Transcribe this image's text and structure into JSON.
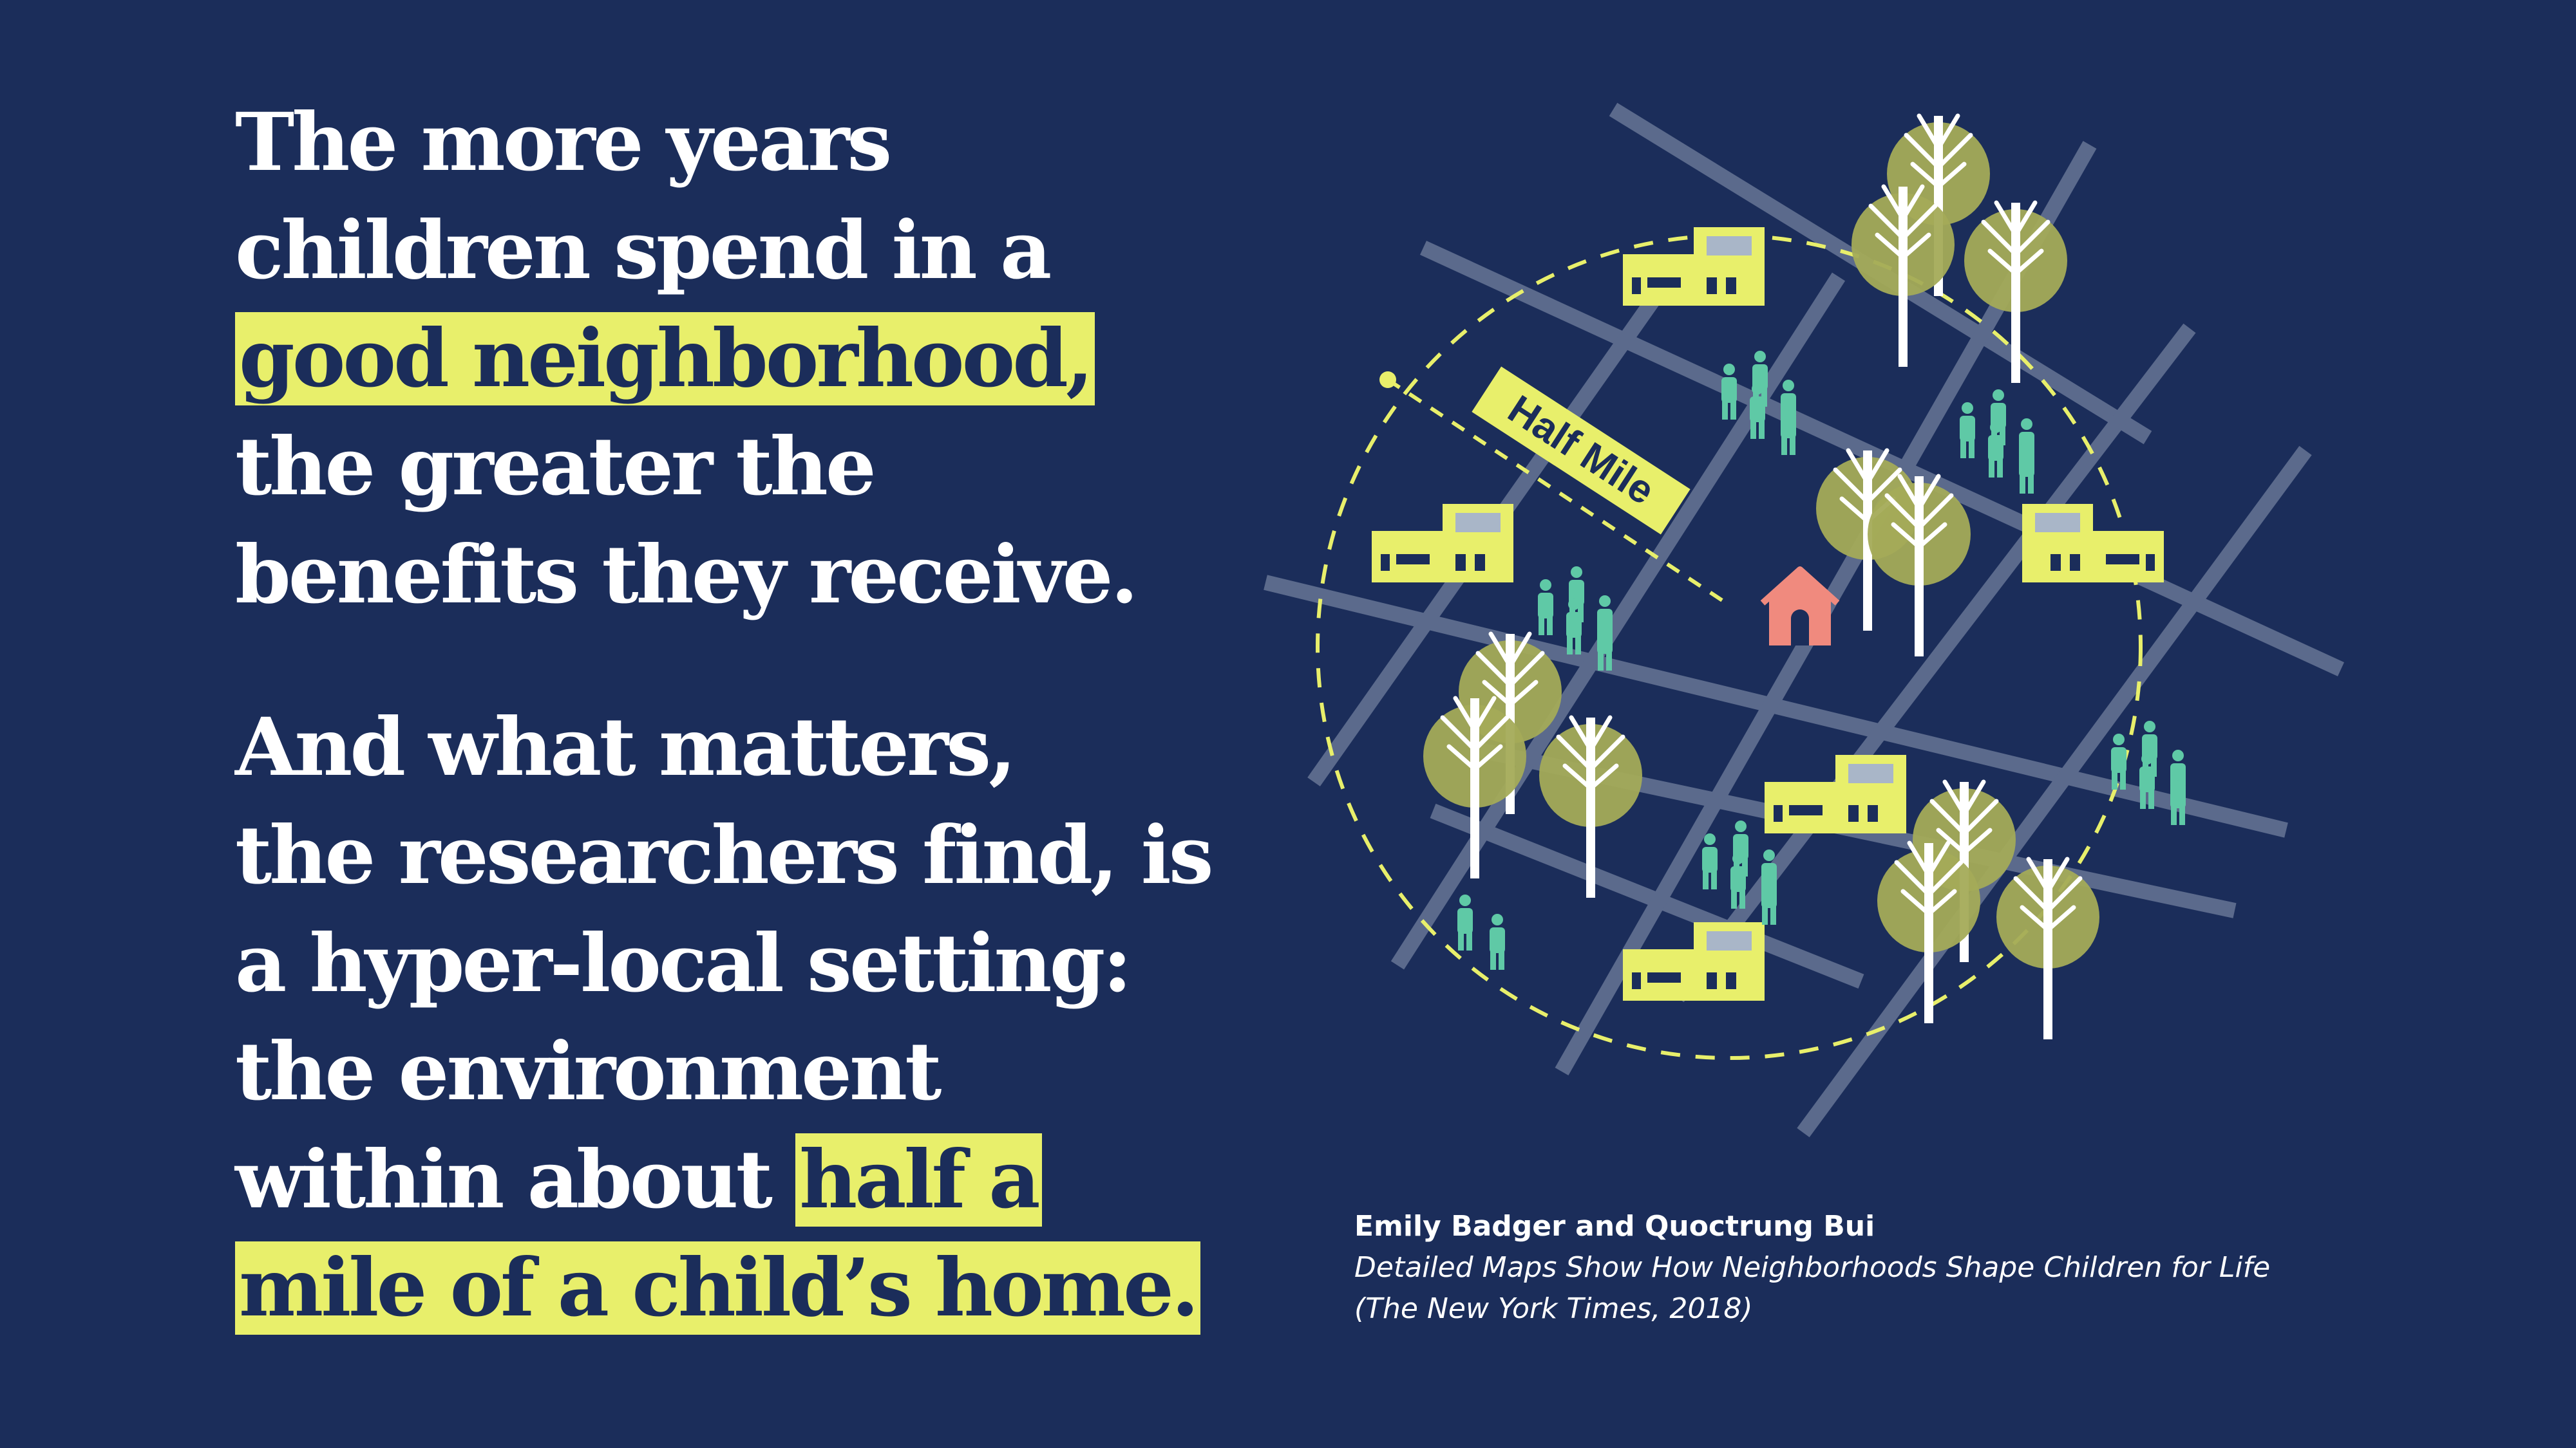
{
  "quote": {
    "paragraph1": {
      "line1": "The more years",
      "line2": "children spend in a",
      "line3_highlight": "good neighborhood,",
      "line4": "the greater the",
      "line5": "benefits they receive."
    },
    "paragraph2": {
      "line1": "And what matters,",
      "line2": "the researchers find, is",
      "line3": "a hyper-local setting:",
      "line4": "the environment",
      "line5_text": "within about ",
      "line5_highlight": "half a",
      "line6_highlight": "mile of a child’s home."
    }
  },
  "map": {
    "radius_label": "Half Mile",
    "icons": [
      "street-grid",
      "house-icon",
      "building-icon",
      "tree-icon",
      "people-icon",
      "dashed-circle"
    ],
    "colors": {
      "background": "#1b2d5a",
      "highlight": "#e8ef6b",
      "street": "#5b6a8c",
      "tree_canopy": "#a4ab58",
      "people": "#5fc9a6",
      "house": "#f08a7e",
      "building": "#e8ef6b"
    }
  },
  "citation": {
    "authors": "Emily Badger and Quoctrung Bui",
    "work": "Detailed Maps Show How Neighborhoods Shape Children for Life",
    "publication": "(The New York Times, 2018)"
  }
}
